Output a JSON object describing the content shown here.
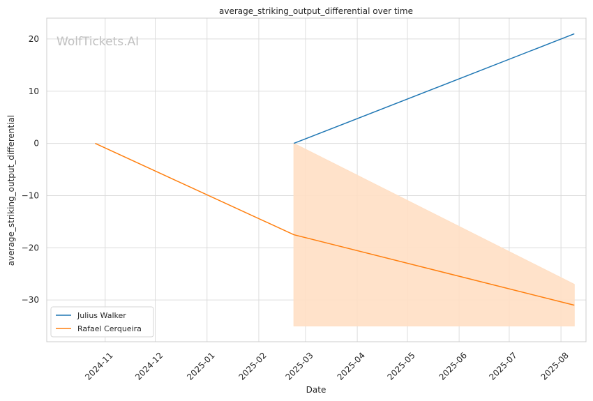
{
  "chart_data": {
    "type": "line",
    "title": "average_striking_output_differential over time",
    "xlabel": "Date",
    "ylabel": "average_striking_output_differential",
    "watermark": "WolfTickets.AI",
    "xlim": [
      "2024-09-27",
      "2025-08-16"
    ],
    "ylim": [
      -38,
      24
    ],
    "x_ticks": [
      "2024-11",
      "2024-12",
      "2025-01",
      "2025-02",
      "2025-03",
      "2025-04",
      "2025-05",
      "2025-06",
      "2025-07",
      "2025-08"
    ],
    "y_ticks": [
      20,
      10,
      0,
      -10,
      -20,
      -30
    ],
    "y_tick_labels": [
      "20",
      "10",
      "0",
      "−10",
      "−20",
      "−30"
    ],
    "grid": true,
    "legend_position": "bottom-left",
    "series": [
      {
        "name": "Julius Walker",
        "color": "#1f77b4",
        "points": [
          {
            "x": "2025-02-22",
            "y": 0
          },
          {
            "x": "2025-08-09",
            "y": 21
          }
        ]
      },
      {
        "name": "Rafael Cerqueira",
        "color": "#ff7f0e",
        "points": [
          {
            "x": "2024-10-26",
            "y": 0
          },
          {
            "x": "2025-02-22",
            "y": -17.5
          },
          {
            "x": "2025-08-09",
            "y": -31
          }
        ],
        "band": [
          {
            "x": "2025-02-22",
            "low": -35,
            "high": 0
          },
          {
            "x": "2025-08-09",
            "low": -35,
            "high": -27
          }
        ],
        "band_color": "#ffdfc4"
      }
    ]
  }
}
